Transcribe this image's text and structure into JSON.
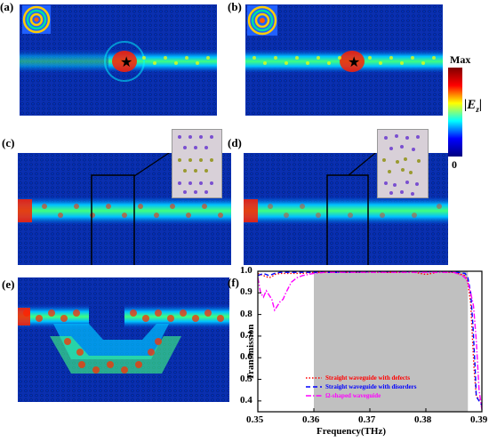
{
  "panels": {
    "a": "(a)",
    "b": "(b)",
    "c": "(c)",
    "d": "(d)",
    "e": "(e)",
    "f": "(f)"
  },
  "colorbar": {
    "max_label": "Max",
    "min_label": "0",
    "quantity": "|E",
    "quantity_sub": "z",
    "quantity_end": "|",
    "colors": [
      "#00007f",
      "#0000ff",
      "#00ffff",
      "#ffff00",
      "#ff0000",
      "#7f0000"
    ]
  },
  "chart_data": {
    "type": "line",
    "xlabel": "Frequency(THz)",
    "ylabel": "Transmission",
    "xlim": [
      0.35,
      0.39
    ],
    "ylim": [
      0.35,
      1.0
    ],
    "xticks": [
      "0.35",
      "0.36",
      "0.37",
      "0.38",
      "0.39"
    ],
    "yticks": [
      "0.4",
      "0.5",
      "0.6",
      "0.7",
      "0.8",
      "0.9",
      "1.0"
    ],
    "shaded_band": [
      0.36,
      0.3875
    ],
    "shaded_color": "#c0c0c0",
    "legend_position": "bottom-right",
    "series": [
      {
        "name": "Straight waveguide with defects",
        "color": "#ff0000",
        "dash": "dot",
        "x": [
          0.35,
          0.3505,
          0.351,
          0.3515,
          0.352,
          0.3525,
          0.353,
          0.354,
          0.355,
          0.356,
          0.358,
          0.36,
          0.365,
          0.37,
          0.375,
          0.378,
          0.38,
          0.382,
          0.385,
          0.387,
          0.3875,
          0.388,
          0.3883,
          0.3886,
          0.389,
          0.39
        ],
        "y": [
          0.99,
          0.985,
          0.98,
          0.975,
          0.97,
          0.975,
          0.985,
          0.99,
          0.99,
          0.99,
          0.99,
          0.995,
          0.995,
          0.995,
          0.995,
          0.995,
          0.985,
          0.995,
          0.995,
          0.98,
          0.95,
          0.85,
          0.7,
          0.55,
          0.42,
          0.4
        ]
      },
      {
        "name": "Straight waveguide with disorders",
        "color": "#0000ff",
        "dash": "dash",
        "x": [
          0.35,
          0.3505,
          0.351,
          0.3515,
          0.352,
          0.3525,
          0.353,
          0.354,
          0.355,
          0.356,
          0.358,
          0.36,
          0.365,
          0.37,
          0.375,
          0.38,
          0.385,
          0.387,
          0.3875,
          0.388,
          0.3884,
          0.3888,
          0.389,
          0.39
        ],
        "y": [
          0.98,
          0.985,
          0.99,
          0.985,
          0.98,
          0.985,
          0.99,
          0.995,
          0.995,
          0.995,
          0.995,
          0.995,
          0.995,
          0.998,
          0.998,
          0.998,
          0.998,
          0.99,
          0.97,
          0.9,
          0.75,
          0.55,
          0.42,
          0.38
        ]
      },
      {
        "name": "Ω-shaped waveguide",
        "color": "#ff00ff",
        "dash": "dashdot",
        "x": [
          0.35,
          0.3505,
          0.351,
          0.3515,
          0.352,
          0.3525,
          0.353,
          0.3535,
          0.354,
          0.3545,
          0.355,
          0.356,
          0.357,
          0.358,
          0.36,
          0.362,
          0.365,
          0.37,
          0.375,
          0.38,
          0.385,
          0.3865,
          0.387,
          0.3875,
          0.388,
          0.3885,
          0.389,
          0.3895,
          0.39
        ],
        "y": [
          0.97,
          0.9,
          0.88,
          0.91,
          0.89,
          0.87,
          0.82,
          0.84,
          0.86,
          0.87,
          0.9,
          0.95,
          0.97,
          0.98,
          0.99,
          0.995,
          0.995,
          0.995,
          0.995,
          0.995,
          0.995,
          0.98,
          0.97,
          0.95,
          0.9,
          0.84,
          0.68,
          0.45,
          0.36
        ]
      }
    ]
  }
}
